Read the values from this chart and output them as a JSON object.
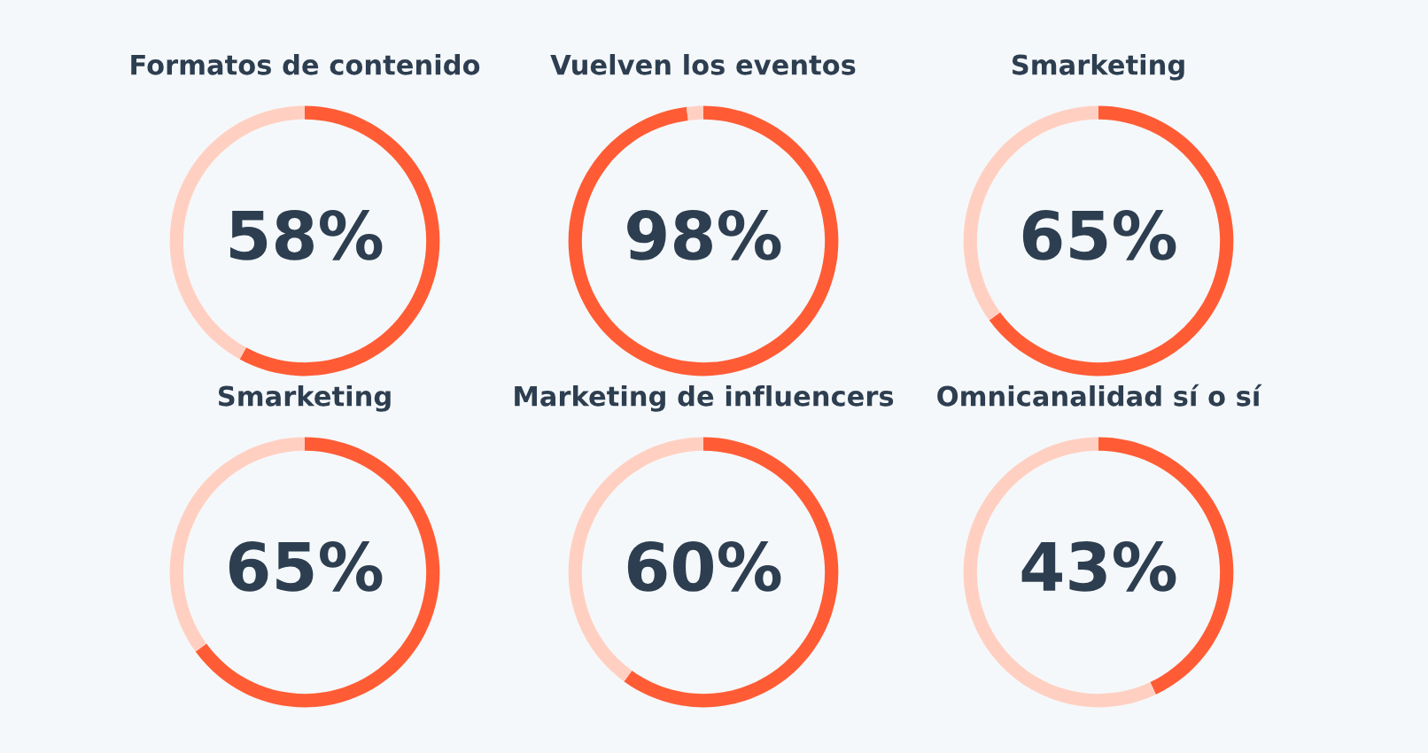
{
  "chart_data": [
    {
      "type": "donut",
      "title": "Formatos de contenido",
      "categories": [
        null,
        null
      ],
      "values": [
        58,
        42
      ],
      "colors": [
        "#ff5c35",
        "#ffd0c2"
      ],
      "value_labels": [
        "58%",
        null
      ]
    },
    {
      "type": "donut",
      "title": "Vuelven los eventos",
      "categories": [
        null,
        null
      ],
      "values": [
        98,
        2
      ],
      "colors": [
        "#ff5c35",
        "#ffd0c2"
      ],
      "value_labels": [
        "98%",
        null
      ]
    },
    {
      "type": "donut",
      "title": "Smarketing",
      "categories": [
        null,
        null
      ],
      "values": [
        65,
        35
      ],
      "colors": [
        "#ff5c35",
        "#ffd0c2"
      ],
      "value_labels": [
        "65%",
        null
      ]
    },
    {
      "type": "donut",
      "title": "Smarketing",
      "categories": [
        null,
        null
      ],
      "values": [
        65,
        35
      ],
      "colors": [
        "#ff5c35",
        "#ffd0c2"
      ],
      "value_labels": [
        "65%",
        null
      ]
    },
    {
      "type": "donut",
      "title": "Marketing de influencers",
      "categories": [
        null,
        null
      ],
      "values": [
        60,
        40
      ],
      "colors": [
        "#ff5c35",
        "#ffd0c2"
      ],
      "value_labels": [
        "60%",
        null
      ]
    },
    {
      "type": "donut",
      "title": "Omnicanalidad sí o sí",
      "categories": [
        null,
        null
      ],
      "values": [
        43,
        57
      ],
      "colors": [
        "#ff5c35",
        "#ffd0c2"
      ],
      "value_labels": [
        "43%",
        null
      ]
    }
  ]
}
